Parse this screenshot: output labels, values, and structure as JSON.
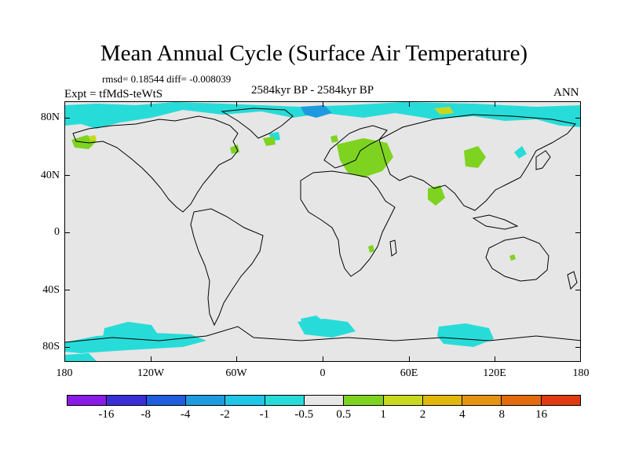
{
  "header": {
    "title": "Mean Annual Cycle (Surface Air Temperature)",
    "stats": "rmsd= 0.18544 diff= -0.008039",
    "experiment": "Expt = tfMdS-teWtS",
    "period": "2584kyr BP - 2584kyr BP",
    "season": "ANN"
  },
  "map": {
    "background_color": "#e6e6e6",
    "lat_labels": [
      "80N",
      "40N",
      "0",
      "40S",
      "80S"
    ],
    "lon_labels": [
      "180",
      "120W",
      "60W",
      "0",
      "60E",
      "120E",
      "180"
    ]
  },
  "colorbar": {
    "colors": [
      "#8a1be6",
      "#3a2fd6",
      "#1f5fdf",
      "#1e9bde",
      "#1fc6e8",
      "#27dcd8",
      "#e6e6e6",
      "#7ed321",
      "#c8d81e",
      "#e0b70f",
      "#e59412",
      "#e36a0e",
      "#e03a10"
    ],
    "labels": [
      "-16",
      "-8",
      "-4",
      "-2",
      "-1",
      "-0.5",
      "0.5",
      "1",
      "2",
      "4",
      "8",
      "16"
    ]
  }
}
